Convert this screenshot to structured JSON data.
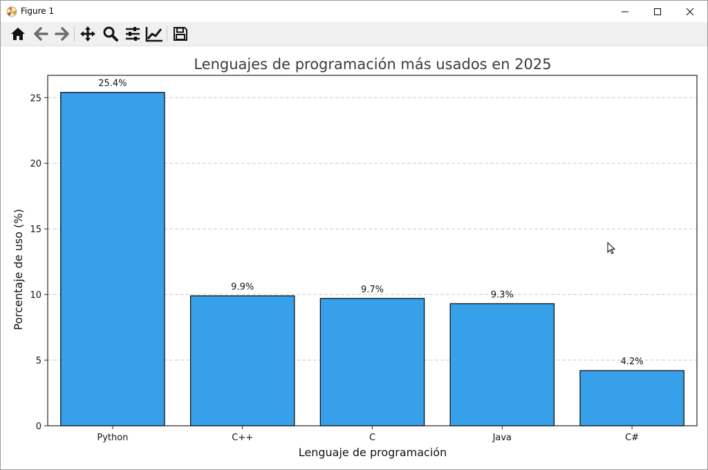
{
  "window": {
    "title": "Figure 1",
    "icons": [
      "matplotlib-logo-icon",
      "minimize-icon",
      "maximize-icon",
      "close-icon"
    ]
  },
  "toolbar": {
    "tools": [
      {
        "name": "home-icon",
        "label": "Home"
      },
      {
        "name": "back-icon",
        "label": "Back"
      },
      {
        "name": "forward-icon",
        "label": "Forward"
      },
      {
        "name": "pan-icon",
        "label": "Pan"
      },
      {
        "name": "zoom-icon",
        "label": "Zoom"
      },
      {
        "name": "configure-subplots-icon",
        "label": "Subplots"
      },
      {
        "name": "edit-axis-icon",
        "label": "Customize"
      },
      {
        "name": "save-icon",
        "label": "Save"
      }
    ]
  },
  "colors": {
    "bar_fill": "#36a0ea",
    "bar_edge": "#111111",
    "grid": "#c8c8c8",
    "title": "#3a3a3a",
    "toolbar_bg": "#f0f0f0"
  },
  "chart_data": {
    "type": "bar",
    "title": "Lenguajes de programación más usados en 2025",
    "xlabel": "Lenguaje de programación",
    "ylabel": "Porcentaje de uso (%)",
    "categories": [
      "Python",
      "C++",
      "C",
      "Java",
      "C#"
    ],
    "values": [
      25.4,
      9.9,
      9.7,
      9.3,
      4.2
    ],
    "value_labels": [
      "25.4%",
      "9.9%",
      "9.7%",
      "9.3%",
      "4.2%"
    ],
    "ylim": [
      0,
      26.7
    ],
    "yticks": [
      0,
      5,
      10,
      15,
      20,
      25
    ],
    "ytick_labels": [
      "0",
      "5",
      "10",
      "15",
      "20",
      "25"
    ],
    "grid": "y-dashed",
    "legend": "none"
  }
}
